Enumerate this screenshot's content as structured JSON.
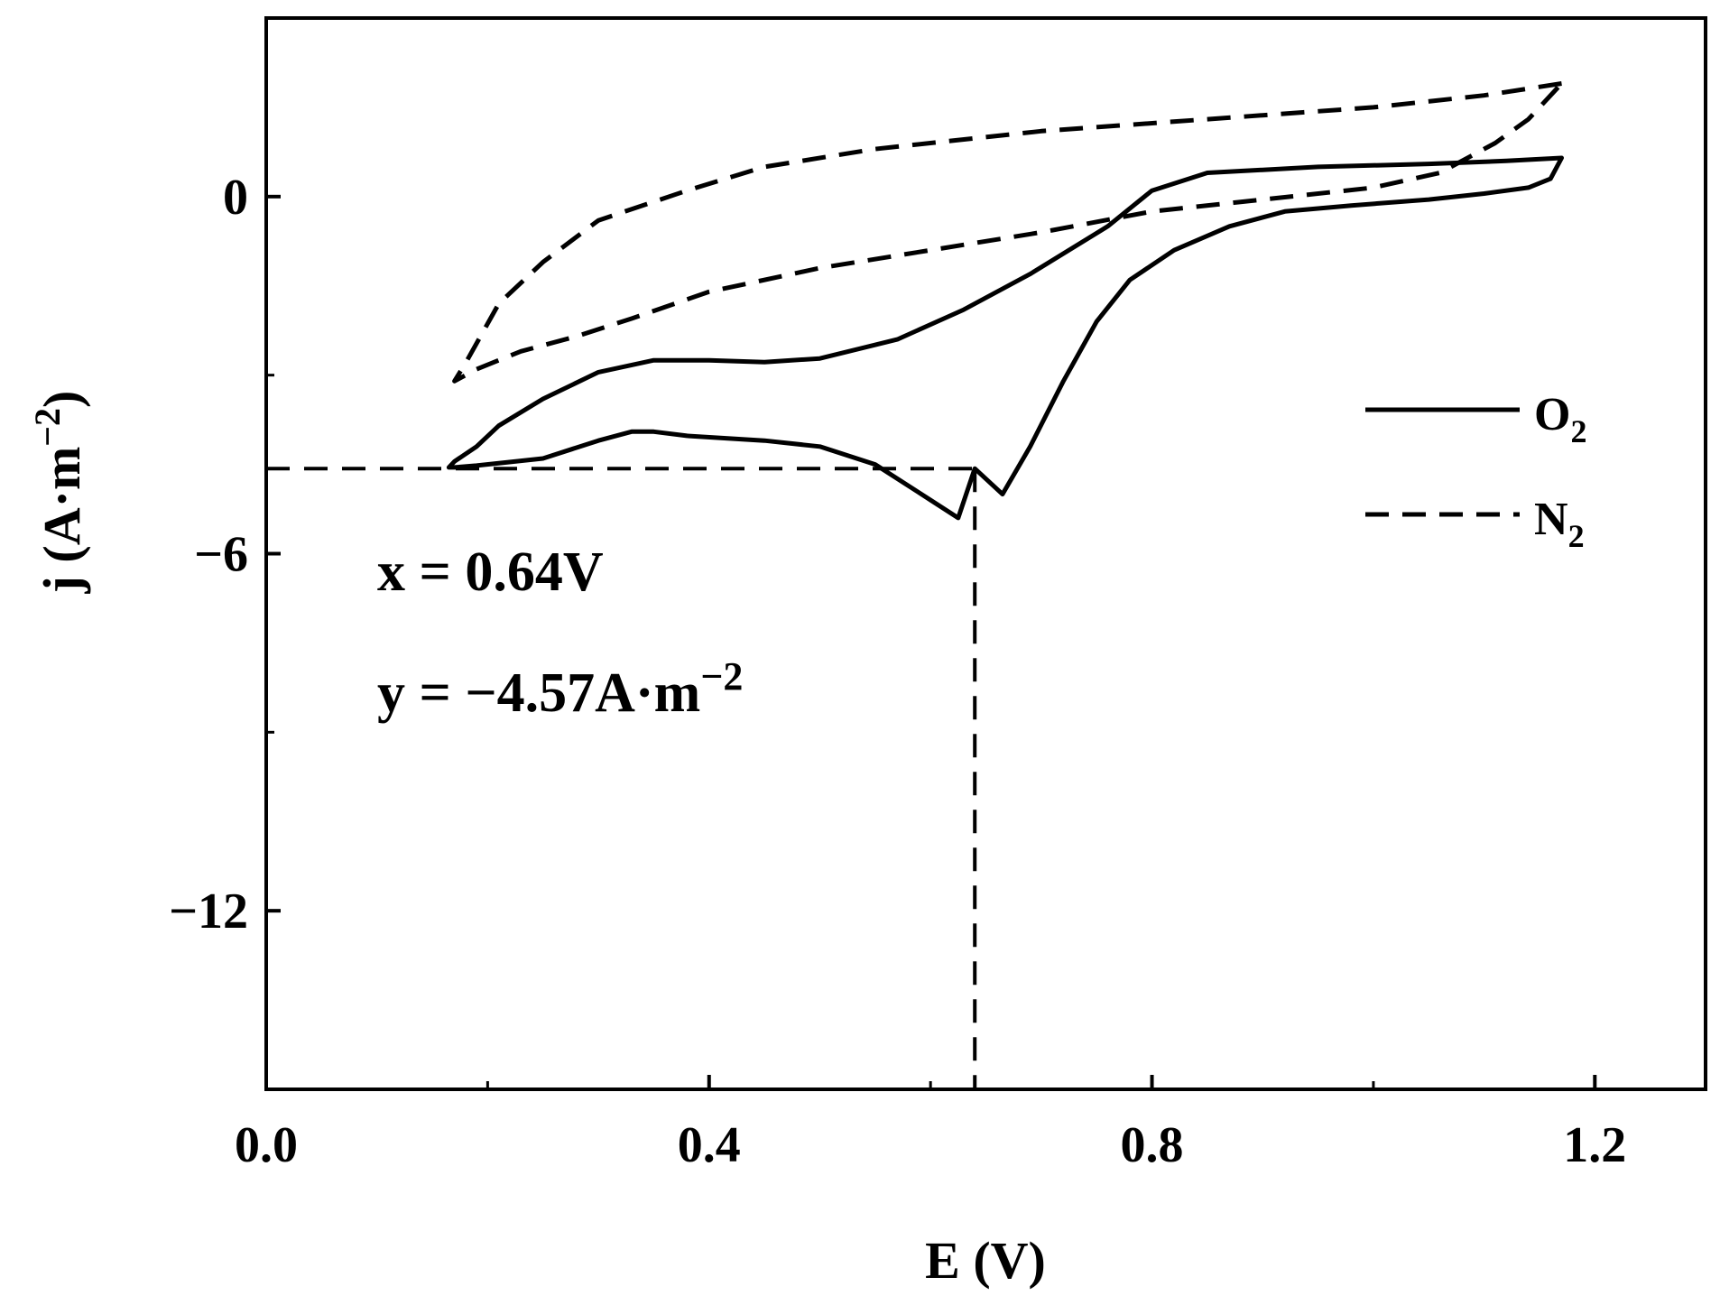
{
  "chart_data": {
    "type": "line",
    "xlabel": "E (V)",
    "ylabel_main": "j (A·m",
    "ylabel_sup": "−2",
    "ylabel_close": ")",
    "xlim": [
      0.0,
      1.3
    ],
    "ylim": [
      -15,
      3
    ],
    "x_ticks": [
      0.0,
      0.4,
      0.8,
      1.2
    ],
    "x_tick_labels": [
      "0.0",
      "0.4",
      "0.8",
      "1.2"
    ],
    "x_minor_ticks": [
      0.2,
      0.6,
      1.0
    ],
    "y_ticks": [
      0,
      -6,
      -12
    ],
    "y_tick_labels": [
      "0",
      "−6",
      "−12"
    ],
    "y_minor_ticks": [
      -3,
      -9
    ],
    "grid": false,
    "legend_position": "right",
    "annotation": {
      "x_value": 0.64,
      "y_value": -4.57,
      "x_text": "x = 0.64V",
      "y_text_main": "y = −4.57A·m",
      "y_text_sup": "−2"
    },
    "series": [
      {
        "name": "O2",
        "legend_main": "O",
        "legend_sub": "2",
        "style": "solid",
        "color": "#000000",
        "points": [
          [
            1.17,
            0.65
          ],
          [
            1.12,
            0.6
          ],
          [
            1.05,
            0.55
          ],
          [
            0.95,
            0.5
          ],
          [
            0.85,
            0.4
          ],
          [
            0.8,
            0.1
          ],
          [
            0.76,
            -0.5
          ],
          [
            0.69,
            -1.3
          ],
          [
            0.63,
            -1.9
          ],
          [
            0.57,
            -2.4
          ],
          [
            0.5,
            -2.72
          ],
          [
            0.45,
            -2.78
          ],
          [
            0.4,
            -2.75
          ],
          [
            0.35,
            -2.75
          ],
          [
            0.3,
            -2.95
          ],
          [
            0.25,
            -3.4
          ],
          [
            0.21,
            -3.85
          ],
          [
            0.19,
            -4.2
          ],
          [
            0.17,
            -4.45
          ],
          [
            0.165,
            -4.55
          ],
          [
            0.17,
            -4.55
          ],
          [
            0.19,
            -4.52
          ],
          [
            0.25,
            -4.4
          ],
          [
            0.3,
            -4.1
          ],
          [
            0.33,
            -3.95
          ],
          [
            0.35,
            -3.95
          ],
          [
            0.38,
            -4.02
          ],
          [
            0.45,
            -4.1
          ],
          [
            0.5,
            -4.2
          ],
          [
            0.55,
            -4.5
          ],
          [
            0.6,
            -5.1
          ],
          [
            0.625,
            -5.4
          ],
          [
            0.64,
            -4.57
          ],
          [
            0.665,
            -5.0
          ],
          [
            0.69,
            -4.2
          ],
          [
            0.72,
            -3.1
          ],
          [
            0.75,
            -2.1
          ],
          [
            0.78,
            -1.4
          ],
          [
            0.82,
            -0.9
          ],
          [
            0.87,
            -0.5
          ],
          [
            0.92,
            -0.25
          ],
          [
            0.98,
            -0.15
          ],
          [
            1.05,
            -0.05
          ],
          [
            1.1,
            0.05
          ],
          [
            1.14,
            0.15
          ],
          [
            1.16,
            0.3
          ],
          [
            1.17,
            0.65
          ]
        ]
      },
      {
        "name": "N2",
        "legend_main": "N",
        "legend_sub": "2",
        "style": "dashed",
        "color": "#000000",
        "points": [
          [
            1.17,
            1.9
          ],
          [
            1.1,
            1.7
          ],
          [
            1.0,
            1.5
          ],
          [
            0.85,
            1.3
          ],
          [
            0.7,
            1.1
          ],
          [
            0.55,
            0.8
          ],
          [
            0.45,
            0.5
          ],
          [
            0.38,
            0.1
          ],
          [
            0.3,
            -0.4
          ],
          [
            0.25,
            -1.1
          ],
          [
            0.21,
            -1.8
          ],
          [
            0.18,
            -2.8
          ],
          [
            0.17,
            -3.1
          ],
          [
            0.19,
            -2.9
          ],
          [
            0.23,
            -2.6
          ],
          [
            0.28,
            -2.35
          ],
          [
            0.33,
            -2.05
          ],
          [
            0.4,
            -1.6
          ],
          [
            0.5,
            -1.2
          ],
          [
            0.6,
            -0.9
          ],
          [
            0.7,
            -0.6
          ],
          [
            0.8,
            -0.25
          ],
          [
            0.9,
            -0.05
          ],
          [
            1.0,
            0.15
          ],
          [
            1.06,
            0.4
          ],
          [
            1.11,
            0.9
          ],
          [
            1.14,
            1.3
          ],
          [
            1.17,
            1.9
          ]
        ]
      }
    ]
  }
}
